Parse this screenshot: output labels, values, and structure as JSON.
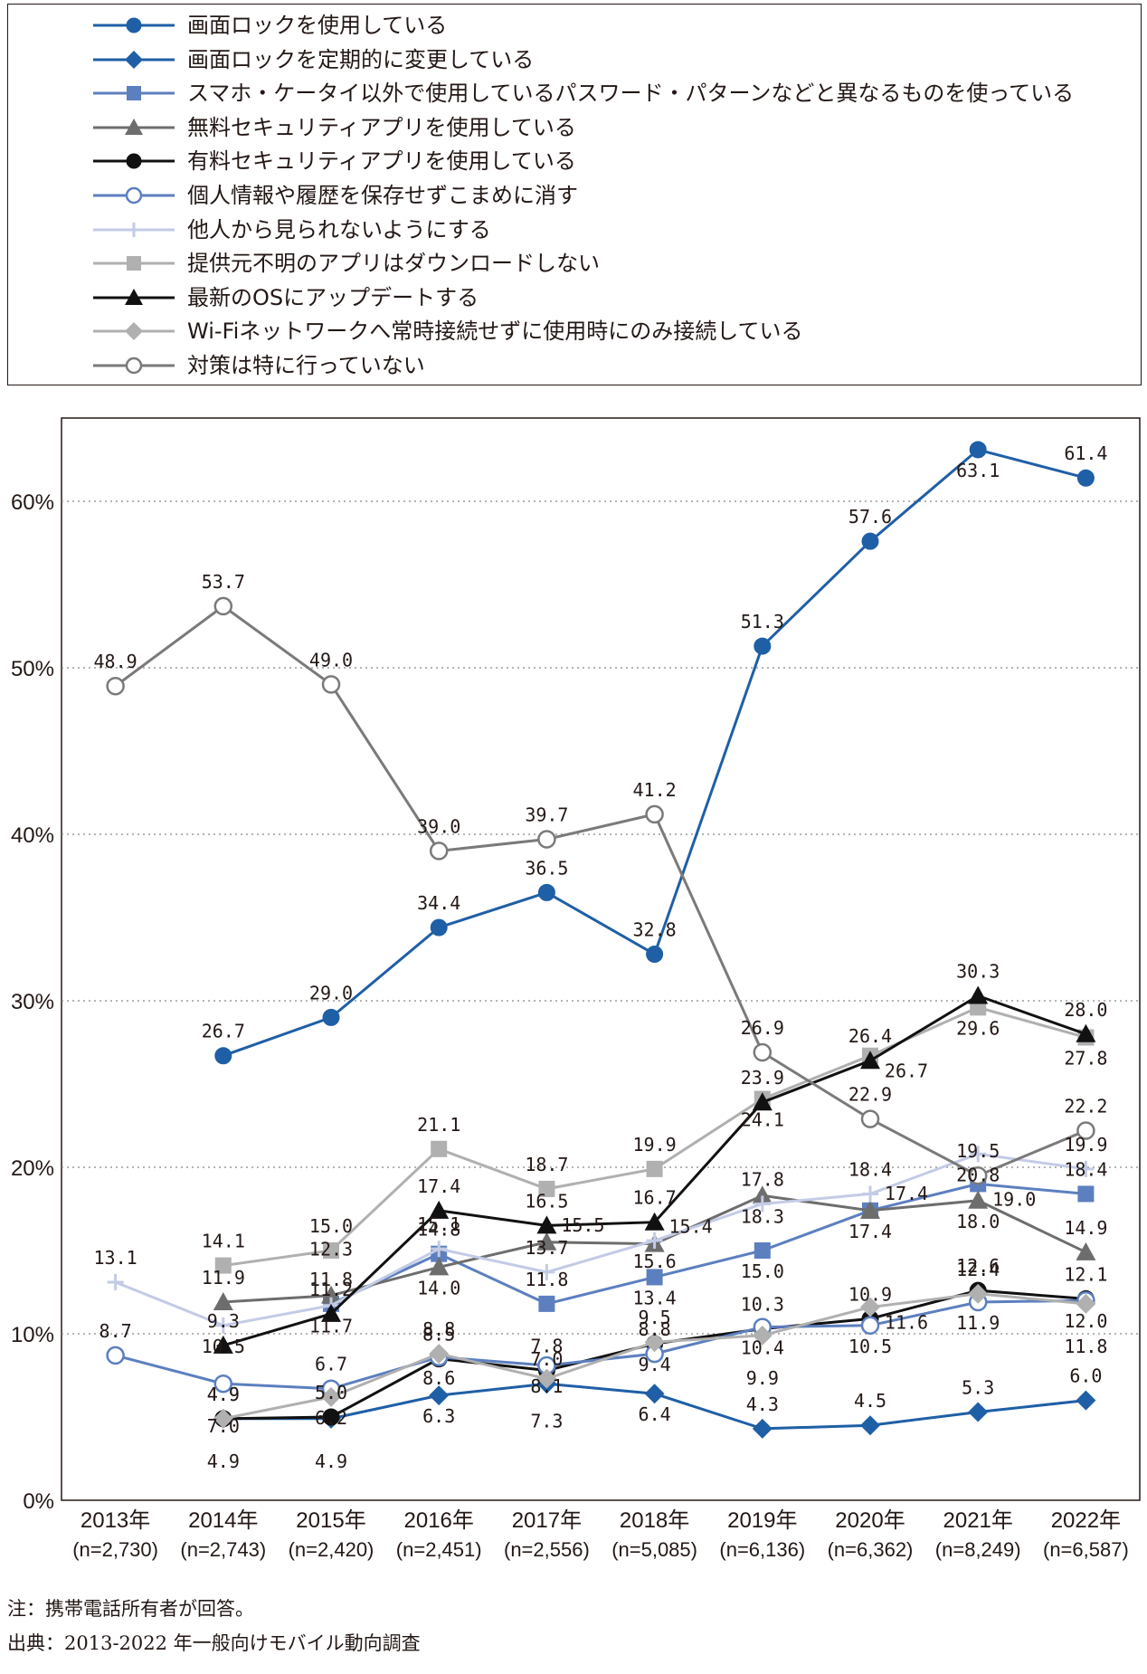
{
  "chart_data": {
    "type": "line",
    "title": "",
    "xlabel": "",
    "ylabel": "",
    "ylim": [
      0,
      65
    ],
    "yticks": [
      "0%",
      "10%",
      "20%",
      "30%",
      "40%",
      "50%",
      "60%"
    ],
    "grid": "horizontal dotted",
    "legend_position": "top",
    "categories": [
      "2013年",
      "2014年",
      "2015年",
      "2016年",
      "2017年",
      "2018年",
      "2019年",
      "2020年",
      "2021年",
      "2022年"
    ],
    "category_n": [
      "(n=2,730)",
      "(n=2,743)",
      "(n=2,420)",
      "(n=2,451)",
      "(n=2,556)",
      "(n=5,085)",
      "(n=6,136)",
      "(n=6,362)",
      "(n=8,249)",
      "(n=6,587)"
    ],
    "series": [
      {
        "name": "画面ロックを使用している",
        "color": "#1f5fa6",
        "marker": "circle-filled",
        "values": [
          null,
          26.7,
          29.0,
          34.4,
          36.5,
          32.8,
          51.3,
          57.6,
          63.1,
          61.4
        ]
      },
      {
        "name": "画面ロックを定期的に変更している",
        "color": "#1f5fa6",
        "marker": "diamond-filled",
        "values": [
          null,
          4.9,
          4.9,
          6.3,
          7.0,
          6.4,
          4.3,
          4.5,
          5.3,
          6.0
        ]
      },
      {
        "name": "スマホ・ケータイ以外で使用しているパスワード・パターンなどと異なるものを使っている",
        "color": "#5c7fbf",
        "marker": "square-filled",
        "values": [
          null,
          null,
          11.8,
          14.8,
          11.8,
          13.4,
          15.0,
          17.4,
          19.0,
          18.4
        ]
      },
      {
        "name": "無料セキュリティアプリを使用している",
        "color": "#6d6d6d",
        "marker": "triangle-filled",
        "values": [
          null,
          11.9,
          12.3,
          14.0,
          15.5,
          15.4,
          18.3,
          17.4,
          18.0,
          14.9
        ]
      },
      {
        "name": "有料セキュリティアプリを使用している",
        "color": "#111111",
        "marker": "circle-filled",
        "values": [
          null,
          4.9,
          5.0,
          8.5,
          7.8,
          9.4,
          10.3,
          10.9,
          12.6,
          12.1
        ]
      },
      {
        "name": "個人情報や履歴を保存せずこまめに消す",
        "color": "#5c7fbf",
        "marker": "circle-open",
        "values": [
          8.7,
          7.0,
          6.7,
          8.6,
          8.1,
          8.8,
          10.4,
          10.5,
          11.9,
          12.0
        ]
      },
      {
        "name": "他人から見られないようにする",
        "color": "#c3cbe6",
        "marker": "plus",
        "values": [
          13.1,
          10.5,
          11.7,
          15.1,
          13.7,
          15.6,
          17.8,
          18.4,
          20.8,
          19.9
        ]
      },
      {
        "name": "提供元不明のアプリはダウンロードしない",
        "color": "#b0b0b0",
        "marker": "square-filled",
        "values": [
          null,
          14.1,
          15.0,
          21.1,
          18.7,
          19.9,
          24.1,
          26.7,
          29.6,
          27.8
        ]
      },
      {
        "name": "最新のOSにアップデートする",
        "color": "#111111",
        "marker": "triangle-filled",
        "values": [
          null,
          9.3,
          11.2,
          17.4,
          16.5,
          16.7,
          23.9,
          26.4,
          30.3,
          28.0
        ]
      },
      {
        "name": "Wi-Fiネットワークへ常時接続せずに使用時にのみ接続している",
        "color": "#b0b0b0",
        "marker": "diamond-filled",
        "values": [
          null,
          4.9,
          6.2,
          8.8,
          7.3,
          9.5,
          9.9,
          11.6,
          12.4,
          11.8
        ]
      },
      {
        "name": "対策は特に行っていない",
        "color": "#7a7a7a",
        "marker": "circle-open",
        "values": [
          48.9,
          53.7,
          49.0,
          39.0,
          39.7,
          41.2,
          26.9,
          22.9,
          19.5,
          22.2
        ]
      }
    ]
  },
  "notes": {
    "note1": "注：携帯電話所有者が回答。",
    "note2": "出典：2013-2022 年一般向けモバイル動向調査"
  }
}
